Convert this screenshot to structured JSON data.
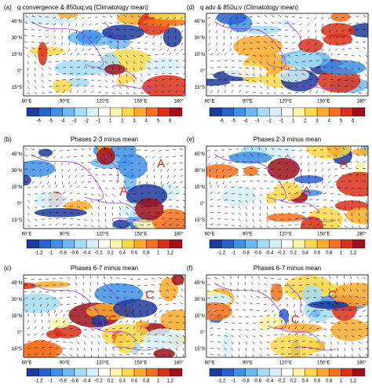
{
  "lat_ticks": [
    "45°N",
    "30°N",
    "15°N",
    "0°",
    "15°S"
  ],
  "lon_ticks": [
    "60°E",
    "90°E",
    "120°E",
    "150°E",
    "180°"
  ],
  "palette": [
    "#1f3a9e",
    "#2a62cc",
    "#3f8fe6",
    "#6fb9f2",
    "#a6dcf7",
    "#d6f1fb",
    "#ffffff",
    "#fff6a8",
    "#ffd84a",
    "#ffaa2a",
    "#f5701c",
    "#d9301a",
    "#a0101a"
  ],
  "panels": [
    {
      "label": "(a)",
      "title": "q convergence & 850uq;vq (Climatology mean)",
      "colorbar": [
        -6,
        -5,
        -4,
        -3,
        -2,
        -1,
        1,
        2,
        3,
        4,
        5,
        6
      ],
      "annotations": []
    },
    {
      "label": "(b)",
      "title": "Phases 2-3 minus mean",
      "colorbar": [
        -1.2,
        -1,
        -0.8,
        -0.6,
        -0.4,
        -0.2,
        0.2,
        0.4,
        0.6,
        0.8,
        1,
        1.2
      ],
      "annotations": [
        "A",
        "A"
      ]
    },
    {
      "label": "(c)",
      "title": "Phases 6-7 minus mean",
      "colorbar": [
        -1.2,
        -1,
        -0.8,
        -0.6,
        -0.4,
        -0.2,
        0.2,
        0.4,
        0.6,
        0.8,
        1,
        1.2
      ],
      "annotations": [
        "C",
        "C"
      ]
    },
    {
      "label": "(d)",
      "title": "q adv & 850u;v (Climatology mean)",
      "colorbar": [
        -6,
        -5,
        -4,
        -3,
        -2,
        -1,
        1,
        2,
        3,
        4,
        5,
        6
      ],
      "annotations": []
    },
    {
      "label": "(e)",
      "title": "Phases 2-3 minus mean",
      "colorbar": [
        -1.2,
        -1,
        -0.8,
        -0.6,
        -0.4,
        -0.2,
        0.2,
        0.4,
        0.6,
        0.8,
        1,
        1.2
      ],
      "annotations": [
        "A",
        "A"
      ]
    },
    {
      "label": "(f)",
      "title": "Phases 6-7 minus mean",
      "colorbar": [
        -1.2,
        -1,
        -0.8,
        -0.6,
        -0.4,
        -0.2,
        0.2,
        0.4,
        0.6,
        0.8,
        1,
        1.2
      ],
      "annotations": [
        "C",
        "C"
      ]
    }
  ]
}
